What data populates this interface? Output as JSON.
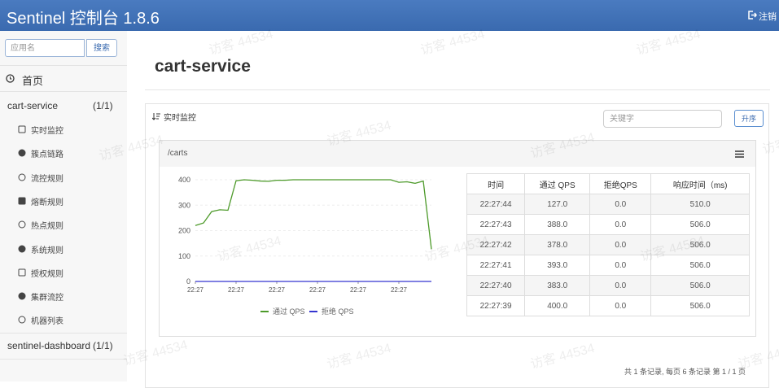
{
  "header": {
    "title": "Sentinel 控制台 1.8.6",
    "logout": "注销"
  },
  "watermark": "访客 44534",
  "sidebar": {
    "search_placeholder": "应用名",
    "search_button": "搜索",
    "home": "首页",
    "apps": [
      {
        "name": "cart-service",
        "count": "(1/1)",
        "menu": [
          "实时监控",
          "簇点链路",
          "流控规则",
          "熔断规则",
          "热点规则",
          "系统规则",
          "授权规则",
          "集群流控",
          "机器列表"
        ]
      },
      {
        "name": "sentinel-dashboard",
        "count": "(1/1)"
      }
    ]
  },
  "main": {
    "title": "cart-service",
    "panel_title": "实时监控",
    "keyword_placeholder": "关键字",
    "sort_button": "升序",
    "resource": "/carts",
    "chart_data": {
      "type": "line",
      "categories": [
        "22:27",
        null,
        null,
        null,
        null,
        "22:27",
        null,
        null,
        null,
        null,
        "22:27",
        null,
        null,
        null,
        null,
        "22:27",
        null,
        null,
        null,
        null,
        "22:27",
        null,
        null,
        null,
        null,
        "22:27",
        null,
        null,
        null,
        null
      ],
      "series": [
        {
          "name": "通过 QPS",
          "color": "#4d9a2a",
          "values": [
            220,
            230,
            275,
            282,
            280,
            396,
            400,
            398,
            395,
            394,
            398,
            398,
            400,
            400,
            400,
            400,
            400,
            400,
            400,
            400,
            400,
            400,
            400,
            400,
            400,
            390,
            392,
            386,
            395,
            127
          ]
        },
        {
          "name": "拒绝 QPS",
          "color": "#3535d0",
          "values": [
            0,
            0,
            0,
            0,
            0,
            0,
            0,
            0,
            0,
            0,
            0,
            0,
            0,
            0,
            0,
            0,
            0,
            0,
            0,
            0,
            0,
            0,
            0,
            0,
            0,
            0,
            0,
            0,
            0,
            0
          ]
        }
      ],
      "ylim": [
        0,
        400
      ],
      "yticks": [
        0,
        100,
        200,
        300,
        400
      ],
      "grid": true
    },
    "table": {
      "headers": [
        "时间",
        "通过 QPS",
        "拒绝QPS",
        "响应时间（ms)"
      ],
      "rows": [
        [
          "22:27:44",
          "127.0",
          "0.0",
          "510.0"
        ],
        [
          "22:27:43",
          "388.0",
          "0.0",
          "506.0"
        ],
        [
          "22:27:42",
          "378.0",
          "0.0",
          "506.0"
        ],
        [
          "22:27:41",
          "393.0",
          "0.0",
          "506.0"
        ],
        [
          "22:27:40",
          "383.0",
          "0.0",
          "506.0"
        ],
        [
          "22:27:39",
          "400.0",
          "0.0",
          "506.0"
        ]
      ]
    },
    "footer": "共 1 条记录, 每页 6 条记录 第 1 / 1 页"
  }
}
